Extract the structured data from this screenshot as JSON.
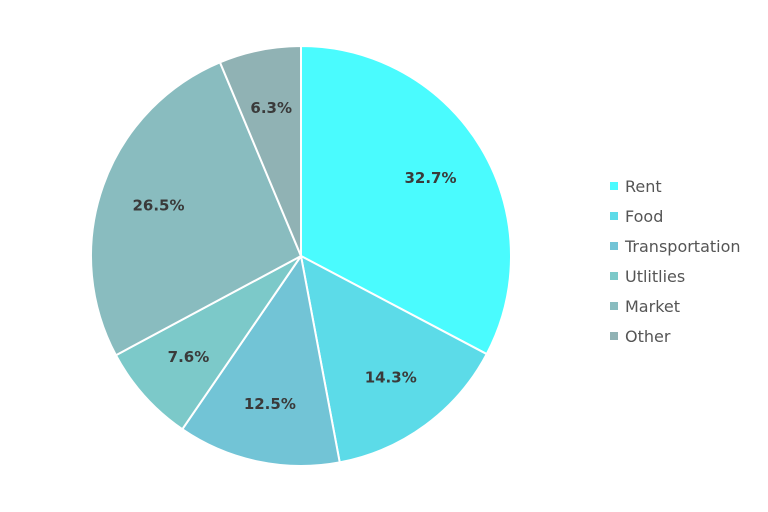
{
  "chart_data": {
    "type": "pie",
    "title": "",
    "categories": [
      "Rent",
      "Food",
      "Transportation",
      "Utlitlies",
      "Market",
      "Other"
    ],
    "values": [
      32.7,
      14.3,
      12.5,
      7.6,
      26.5,
      6.3
    ],
    "labels": [
      "32.7%",
      "14.3%",
      "12.5%",
      "7.6%",
      "26.5%",
      "6.3%"
    ],
    "colors": [
      "#4AFBFE",
      "#5CDBE8",
      "#72C4D6",
      "#7CC9C9",
      "#89BCBF",
      "#90B2B4"
    ],
    "start_angle": "top",
    "direction": "clockwise",
    "legend_position": "right"
  },
  "legend": {
    "items": [
      {
        "label": "Rent",
        "color": "#4AFBFE"
      },
      {
        "label": "Food",
        "color": "#5CDBE8"
      },
      {
        "label": "Transportation",
        "color": "#72C4D6"
      },
      {
        "label": "Utlitlies",
        "color": "#7CC9C9"
      },
      {
        "label": "Market",
        "color": "#89BCBF"
      },
      {
        "label": "Other",
        "color": "#90B2B4"
      }
    ]
  }
}
